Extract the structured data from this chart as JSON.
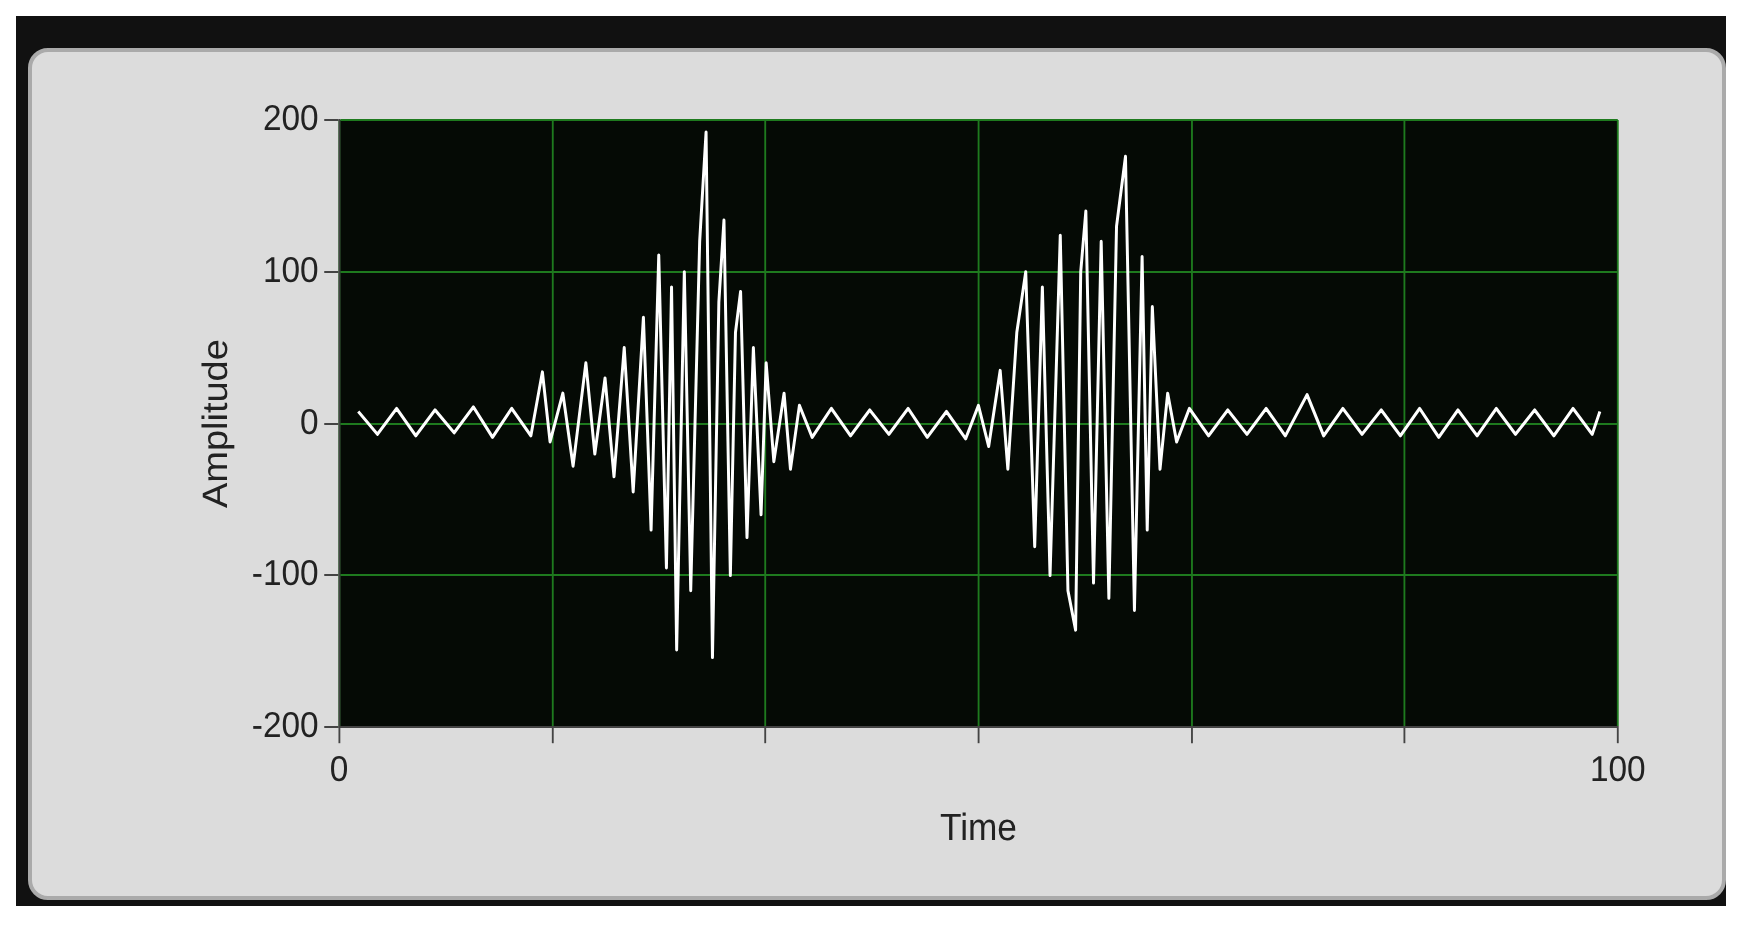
{
  "chart_data": {
    "type": "line",
    "xlabel": "Time",
    "ylabel": "Amplitude",
    "xlim": [
      0,
      100
    ],
    "ylim": [
      -200,
      200
    ],
    "xticks": [
      0,
      {
        "value": 16.7,
        "label": null
      },
      {
        "value": 33.3,
        "label": null
      },
      {
        "value": 50,
        "label": null
      },
      {
        "value": 66.7,
        "label": null
      },
      {
        "value": 83.3,
        "label": null
      },
      100
    ],
    "yticks": [
      -200,
      -100,
      0,
      100,
      200
    ],
    "grid": true,
    "series": [
      {
        "color": "#ffffff",
        "x": [
          1.5,
          3,
          4.5,
          6,
          7.5,
          9,
          10.5,
          12,
          13.5,
          15,
          15.9,
          16.5,
          17.5,
          18.3,
          19.3,
          20,
          20.8,
          21.5,
          22.3,
          23,
          23.8,
          24.4,
          25,
          25.6,
          26,
          26.4,
          27,
          27.5,
          28.2,
          28.7,
          29.2,
          29.7,
          30.1,
          30.6,
          31,
          31.4,
          31.9,
          32.4,
          33,
          33.4,
          34,
          34.8,
          35.3,
          36,
          37,
          38.5,
          40,
          41.5,
          43,
          44.5,
          46,
          47.5,
          49,
          50,
          50.8,
          51.7,
          52.3,
          53,
          53.7,
          54.4,
          55,
          55.6,
          56.4,
          57,
          57.6,
          58,
          58.4,
          59,
          59.6,
          60.2,
          60.8,
          61.5,
          62.2,
          62.8,
          63.2,
          63.6,
          64.2,
          64.8,
          65.5,
          66.5,
          68,
          69.5,
          71,
          72.5,
          74,
          75.7,
          77,
          78.5,
          80,
          81.5,
          83,
          84.5,
          86,
          87.5,
          89,
          90.5,
          92,
          93.5,
          95,
          96.5,
          98,
          98.6
        ],
        "values": [
          8,
          -7,
          10,
          -8,
          9,
          -6,
          11,
          -9,
          10,
          -8,
          34,
          -12,
          20,
          -28,
          40,
          -20,
          30,
          -35,
          50,
          -45,
          70,
          -70,
          111,
          -95,
          90,
          -149,
          100,
          -110,
          120,
          192,
          -154,
          80,
          134,
          -100,
          60,
          87,
          -75,
          50,
          -60,
          40,
          -25,
          20,
          -30,
          12,
          -9,
          10,
          -8,
          9,
          -7,
          10,
          -9,
          8,
          -10,
          12,
          -15,
          35,
          -30,
          60,
          100,
          -81,
          90,
          -100,
          124,
          -110,
          -136,
          100,
          140,
          -105,
          120,
          -115,
          130,
          176,
          -123,
          110,
          -70,
          77,
          -30,
          20,
          -12,
          10,
          -8,
          9,
          -7,
          10,
          -8,
          19,
          -8,
          10,
          -7,
          9,
          -8,
          10,
          -9,
          9,
          -8,
          10,
          -7,
          9,
          -8,
          10,
          -7,
          8
        ]
      }
    ]
  }
}
